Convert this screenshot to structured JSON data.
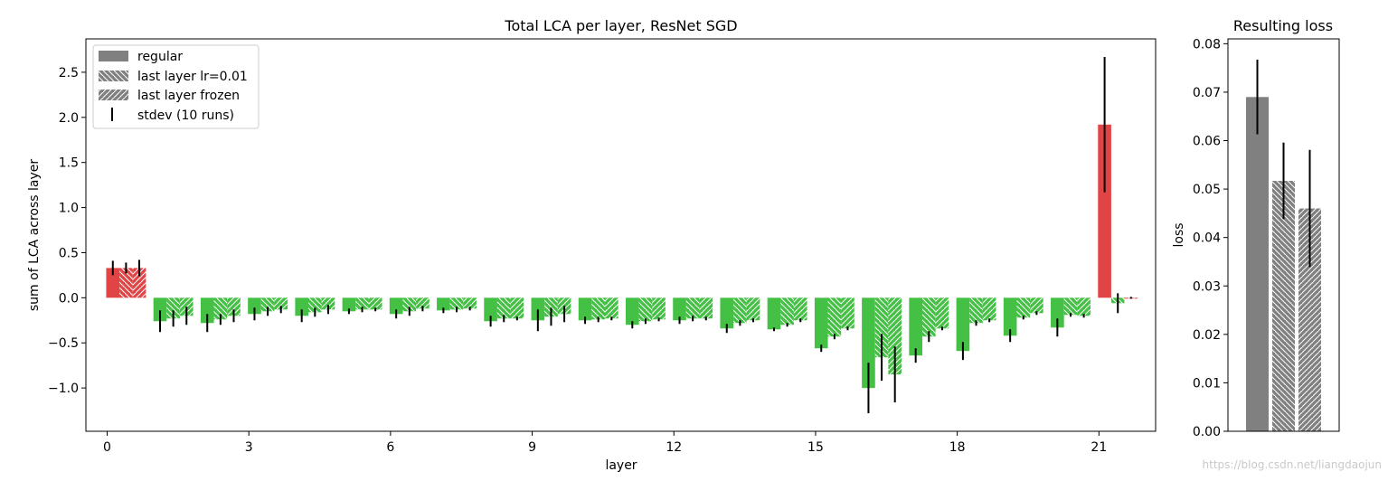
{
  "colors": {
    "regular": "#808080",
    "positive": "#e04444",
    "negative": "#44c044",
    "errorbar": "#000000",
    "hatch": "#ffffff"
  },
  "watermark": "https://blog.csdn.net/liangdaojun",
  "chart_data": [
    {
      "type": "bar",
      "title": "Total LCA per layer, ResNet SGD",
      "xlabel": "layer",
      "ylabel": "sum of LCA across layer",
      "xlim": [
        -0.45,
        22.2
      ],
      "ylim": [
        -1.48,
        2.87
      ],
      "xticks": [
        0,
        3,
        6,
        9,
        12,
        15,
        18,
        21
      ],
      "yticks": [
        -1.0,
        -0.5,
        0.0,
        0.5,
        1.0,
        1.5,
        2.0,
        2.5
      ],
      "ytick_labels": [
        "−1.0",
        "−0.5",
        "0.0",
        "0.5",
        "1.0",
        "1.5",
        "2.0",
        "2.5"
      ],
      "legend": {
        "position": "top-left",
        "entries": [
          "regular",
          "last layer lr=0.01",
          "last layer frozen",
          "stdev (10 runs)"
        ]
      },
      "layers": [
        0,
        1,
        2,
        3,
        4,
        5,
        6,
        7,
        8,
        9,
        10,
        11,
        12,
        13,
        14,
        15,
        16,
        17,
        18,
        19,
        20,
        21
      ],
      "series": [
        {
          "name": "regular",
          "hatch": "none",
          "offset": 0.0,
          "values": [
            0.33,
            -0.26,
            -0.28,
            -0.18,
            -0.2,
            -0.15,
            -0.18,
            -0.14,
            -0.26,
            -0.25,
            -0.25,
            -0.3,
            -0.25,
            -0.34,
            -0.35,
            -0.56,
            -1.0,
            -0.64,
            -0.59,
            -0.42,
            -0.33,
            1.92
          ],
          "errors": [
            0.08,
            0.12,
            0.1,
            0.07,
            0.07,
            0.03,
            0.05,
            0.03,
            0.06,
            0.12,
            0.04,
            0.04,
            0.04,
            0.05,
            0.02,
            0.04,
            0.28,
            0.08,
            0.1,
            0.07,
            0.1,
            0.75
          ]
        },
        {
          "name": "last layer lr=0.01",
          "hatch": "back",
          "offset": 0.28,
          "values": [
            0.33,
            -0.23,
            -0.24,
            -0.15,
            -0.16,
            -0.13,
            -0.15,
            -0.13,
            -0.23,
            -0.21,
            -0.24,
            -0.26,
            -0.23,
            -0.28,
            -0.3,
            -0.43,
            -0.66,
            -0.43,
            -0.28,
            -0.22,
            -0.19,
            -0.06
          ],
          "errors": [
            0.06,
            0.09,
            0.06,
            0.05,
            0.05,
            0.03,
            0.05,
            0.03,
            0.04,
            0.1,
            0.03,
            0.03,
            0.03,
            0.03,
            0.02,
            0.03,
            0.26,
            0.06,
            0.03,
            0.02,
            0.02,
            0.11
          ]
        },
        {
          "name": "last layer frozen",
          "hatch": "fwd",
          "offset": 0.56,
          "values": [
            0.33,
            -0.2,
            -0.2,
            -0.13,
            -0.13,
            -0.13,
            -0.12,
            -0.12,
            -0.23,
            -0.18,
            -0.23,
            -0.24,
            -0.23,
            -0.25,
            -0.25,
            -0.34,
            -0.85,
            -0.34,
            -0.25,
            -0.17,
            -0.2,
            0.0
          ],
          "errors": [
            0.09,
            0.1,
            0.07,
            0.04,
            0.05,
            0.02,
            0.03,
            0.02,
            0.02,
            0.09,
            0.02,
            0.02,
            0.02,
            0.02,
            0.02,
            0.02,
            0.31,
            0.02,
            0.02,
            0.02,
            0.02,
            0.01
          ]
        }
      ]
    },
    {
      "type": "bar",
      "title": "Resulting loss",
      "xlabel": "",
      "ylabel": "loss",
      "ylim": [
        0.0,
        0.081
      ],
      "yticks": [
        0.0,
        0.01,
        0.02,
        0.03,
        0.04,
        0.05,
        0.06,
        0.07,
        0.08
      ],
      "ytick_labels": [
        "0.00",
        "0.01",
        "0.02",
        "0.03",
        "0.04",
        "0.05",
        "0.06",
        "0.07",
        "0.08"
      ],
      "categories": [
        "regular",
        "last layer lr=0.01",
        "last layer frozen"
      ],
      "hatches": [
        "none",
        "back",
        "fwd"
      ],
      "values": [
        0.069,
        0.0517,
        0.046
      ],
      "errors": [
        0.0077,
        0.0079,
        0.0121
      ]
    }
  ]
}
